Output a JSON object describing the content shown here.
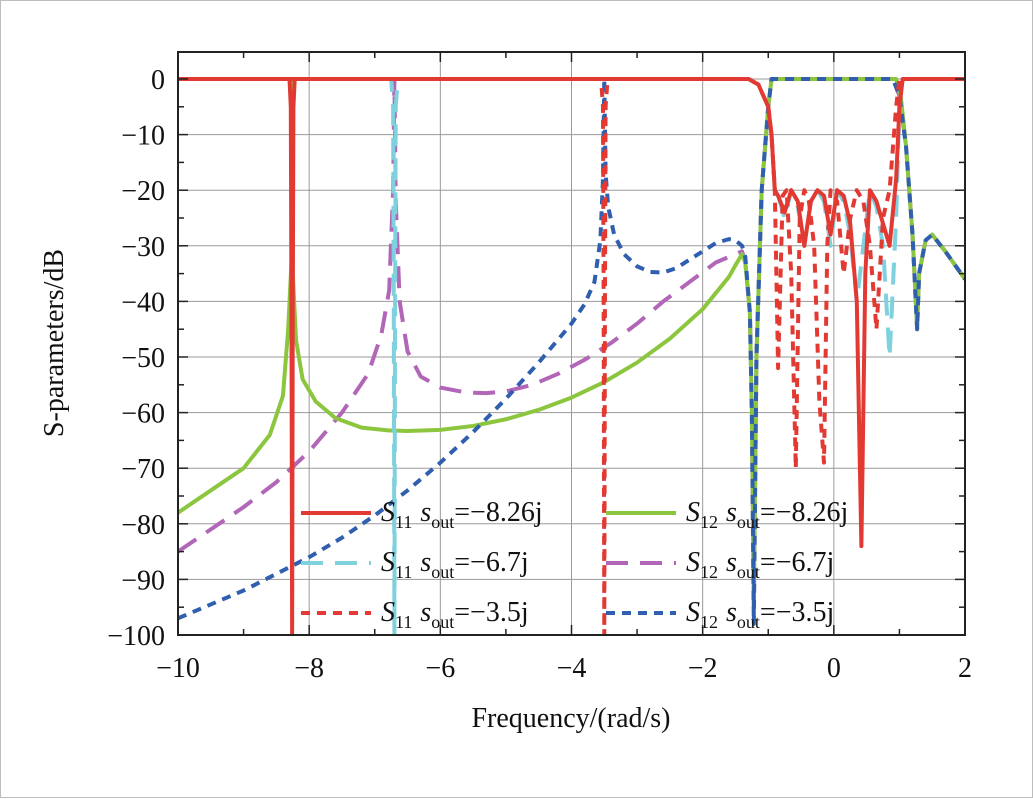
{
  "chart_data": {
    "type": "line",
    "xlabel": "Frequency/(rad/s)",
    "ylabel": "S-parameters/dB",
    "xlim": [
      -10,
      2
    ],
    "ylim": [
      -100,
      5
    ],
    "xticks": [
      -10,
      -8,
      -6,
      -4,
      -2,
      0,
      2
    ],
    "xtick_labels": [
      "−10",
      "−8",
      "−6",
      "−4",
      "−2",
      "0",
      "2"
    ],
    "yticks": [
      0,
      -10,
      -20,
      -30,
      -40,
      -50,
      -60,
      -70,
      -80,
      -90,
      -100
    ],
    "ytick_labels": [
      "0",
      "−10",
      "−20",
      "−30",
      "−40",
      "−50",
      "−60",
      "−70",
      "−80",
      "−90",
      "−100"
    ],
    "grid": true,
    "legend": {
      "placement": "bottom-center",
      "entries": [
        {
          "sym": "S",
          "sub": "11",
          "var": "s",
          "varsub": "out",
          "value": "=−8.26j"
        },
        {
          "sym": "S",
          "sub": "12",
          "var": "s",
          "varsub": "out",
          "value": "=−8.26j"
        },
        {
          "sym": "S",
          "sub": "11",
          "var": "s",
          "varsub": "out",
          "value": "=−6.7j"
        },
        {
          "sym": "S",
          "sub": "12",
          "var": "s",
          "varsub": "out",
          "value": "=−6.7j"
        },
        {
          "sym": "S",
          "sub": "11",
          "var": "s",
          "varsub": "out",
          "value": "=−3.5j"
        },
        {
          "sym": "S",
          "sub": "12",
          "var": "s",
          "varsub": "out",
          "value": "=−3.5j"
        }
      ]
    },
    "series": [
      {
        "name": "S11 sout=-8.26j",
        "color": "#e23a33",
        "dash": "solid",
        "x": [
          -10,
          -8.3,
          -8.28,
          -8.27,
          -8.26,
          -8.25,
          -8.24,
          -8.22,
          -6,
          -3,
          -2,
          -1.3,
          -1.15,
          -1.0,
          -0.95,
          -0.9,
          -0.85,
          -0.75,
          -0.65,
          -0.55,
          -0.45,
          -0.35,
          -0.25,
          -0.15,
          -0.05,
          0.05,
          0.15,
          0.25,
          0.35,
          0.42,
          0.48,
          0.55,
          0.65,
          0.75,
          0.85,
          0.95,
          1.0,
          1.05,
          1.1,
          1.2,
          1.3,
          2
        ],
        "y": [
          0,
          0,
          -5,
          -40,
          -100,
          -40,
          -5,
          0,
          0,
          0,
          0,
          0,
          -1,
          -5,
          -10,
          -20,
          -21,
          -24,
          -20,
          -22,
          -30,
          -22,
          -20,
          -21,
          -28,
          -20,
          -21,
          -26,
          -40,
          -84,
          -35,
          -20,
          -22,
          -26,
          -30,
          -18,
          -5,
          0,
          0,
          0,
          0,
          0
        ]
      },
      {
        "name": "S12 sout=-8.26j",
        "color": "#8cc63f",
        "dash": "solid",
        "x": [
          -10,
          -9.5,
          -9,
          -8.6,
          -8.4,
          -8.32,
          -8.27,
          -8.26,
          -8.25,
          -8.2,
          -8.1,
          -7.9,
          -7.6,
          -7.2,
          -6.8,
          -6.5,
          -6.0,
          -5.5,
          -5.0,
          -4.5,
          -4.0,
          -3.5,
          -3.0,
          -2.5,
          -2.0,
          -1.6,
          -1.5,
          -1.4,
          -1.35,
          -1.28,
          -1.25,
          -1.22,
          -1.18,
          -1.1,
          -1.0,
          -0.95,
          -0.9,
          -0.85,
          -0.75,
          -0.65,
          -0.55,
          -0.45,
          -0.35,
          -0.25,
          -0.15,
          -0.05,
          0.05,
          0.15,
          0.25,
          0.35,
          0.45,
          0.55,
          0.65,
          0.75,
          0.85,
          0.95,
          1.02,
          1.1,
          1.2,
          1.27,
          1.3,
          1.4,
          1.5,
          1.7,
          2.0
        ],
        "y": [
          -78,
          -74,
          -70,
          -64,
          -57,
          -45,
          -33,
          0,
          -35,
          -47,
          -54,
          -58,
          -61,
          -62.7,
          -63.2,
          -63.3,
          -63.1,
          -62.4,
          -61.2,
          -59.5,
          -57.3,
          -54.5,
          -51,
          -46.7,
          -41.4,
          -35.6,
          -33.5,
          -31.5,
          -33,
          -42,
          -60,
          -95,
          -50,
          -20,
          -5,
          0,
          0,
          0,
          0,
          0,
          0,
          0,
          0,
          0,
          0,
          0,
          0,
          0,
          0,
          0,
          0,
          0,
          0,
          0,
          0,
          0,
          -3,
          -12,
          -28,
          -45,
          -35,
          -29,
          -28,
          -31,
          -36
        ]
      },
      {
        "name": "S11 sout=-6.7j",
        "color": "#7fd1de",
        "dash": "longdash",
        "x": [
          -10,
          -6.75,
          -6.72,
          -6.71,
          -6.7,
          -6.69,
          -6.68,
          -6.65,
          -3,
          -1.3,
          -1.15,
          -1.0,
          -0.95,
          -0.9,
          -0.85,
          -0.75,
          -0.65,
          -0.55,
          -0.45,
          -0.35,
          -0.25,
          -0.15,
          -0.05,
          0.05,
          0.15,
          0.25,
          0.35,
          0.45,
          0.55,
          0.65,
          0.75,
          0.85,
          0.95,
          1.0,
          1.05,
          1.1,
          1.2,
          2
        ],
        "y": [
          0,
          0,
          -5,
          -40,
          -100,
          -40,
          -5,
          0,
          0,
          0,
          -1,
          -5,
          -10,
          -20,
          -21,
          -25,
          -20,
          -23,
          -30,
          -22,
          -20,
          -22,
          -30,
          -20,
          -22,
          -28,
          -40,
          -30,
          -20,
          -23,
          -30,
          -50,
          -25,
          -5,
          0,
          0,
          0,
          0
        ]
      },
      {
        "name": "S12 sout=-6.7j",
        "color": "#b266b8",
        "dash": "longdash",
        "x": [
          -10,
          -9.5,
          -9.0,
          -8.5,
          -8.0,
          -7.5,
          -7.1,
          -6.9,
          -6.78,
          -6.72,
          -6.7,
          -6.68,
          -6.62,
          -6.5,
          -6.3,
          -6.0,
          -5.6,
          -5.3,
          -5.0,
          -4.6,
          -4.2,
          -3.8,
          -3.4,
          -3.0,
          -2.6,
          -2.2,
          -1.8,
          -1.5,
          -1.4,
          -1.35,
          -1.28,
          -1.25,
          -1.22,
          -1.18,
          -1.1,
          -1.0,
          -0.95,
          -0.9,
          0,
          0.9,
          1.0,
          1.1,
          1.2,
          1.27,
          1.3,
          1.4,
          1.5,
          1.7,
          2.0
        ],
        "y": [
          -85,
          -81,
          -77,
          -72.5,
          -67,
          -60,
          -53,
          -46,
          -38,
          -20,
          0,
          -22,
          -40,
          -49,
          -53.5,
          -55.5,
          -56.4,
          -56.5,
          -56.2,
          -55,
          -53,
          -50.5,
          -47.5,
          -44,
          -40,
          -36.5,
          -33,
          -31.5,
          -31,
          -33,
          -42,
          -60,
          -95,
          -50,
          -20,
          -5,
          0,
          0,
          0,
          0,
          -3,
          -12,
          -28,
          -45,
          -35,
          -29,
          -28,
          -31,
          -36
        ]
      },
      {
        "name": "S11 sout=-3.5j",
        "color": "#e23a33",
        "dash": "shortdash",
        "x": [
          -10,
          -3.55,
          -3.52,
          -3.51,
          -3.5,
          -3.49,
          -3.48,
          -3.45,
          -1.3,
          -1.15,
          -1.0,
          -0.95,
          -0.9,
          -0.85,
          -0.78,
          -0.72,
          -0.65,
          -0.58,
          -0.52,
          -0.45,
          -0.38,
          -0.3,
          -0.22,
          -0.15,
          -0.1,
          -0.05,
          0.05,
          0.15,
          0.25,
          0.35,
          0.45,
          0.55,
          0.65,
          0.75,
          0.85,
          0.95,
          1.0,
          1.05,
          1.1,
          1.2,
          2
        ],
        "y": [
          0,
          0,
          -5,
          -40,
          -100,
          -40,
          -5,
          0,
          0,
          -1,
          -5,
          -10,
          -20,
          -52,
          -21,
          -20,
          -35,
          -70,
          -25,
          -20,
          -22,
          -30,
          -58,
          -69,
          -30,
          -20,
          -22,
          -35,
          -25,
          -20,
          -22,
          -30,
          -45,
          -25,
          -20,
          -5,
          0,
          0,
          0,
          0,
          0
        ]
      },
      {
        "name": "S12 sout=-3.5j",
        "color": "#2f5fae",
        "dash": "shortdash",
        "x": [
          -10,
          -9.5,
          -9.0,
          -8.5,
          -8.0,
          -7.5,
          -7.0,
          -6.5,
          -6.0,
          -5.5,
          -5.0,
          -4.5,
          -4.0,
          -3.8,
          -3.65,
          -3.56,
          -3.52,
          -3.5,
          -3.48,
          -3.44,
          -3.35,
          -3.2,
          -3.0,
          -2.8,
          -2.6,
          -2.4,
          -2.2,
          -2.0,
          -1.8,
          -1.6,
          -1.5,
          -1.4,
          -1.35,
          -1.28,
          -1.25,
          -1.22,
          -1.18,
          -1.1,
          -1.0,
          -0.95,
          -0.9,
          0,
          0.9,
          1.0,
          1.1,
          1.2,
          1.27,
          1.3,
          1.4,
          1.5,
          1.7,
          2.0
        ],
        "y": [
          -97,
          -94.5,
          -92,
          -89,
          -86,
          -82.5,
          -78.5,
          -74,
          -69,
          -63.5,
          -57.5,
          -51,
          -44,
          -40.5,
          -36.5,
          -29,
          -18,
          0,
          -17,
          -23,
          -28,
          -31.5,
          -33.7,
          -34.7,
          -34.8,
          -34,
          -32.5,
          -31,
          -29.5,
          -28.8,
          -29,
          -30,
          -32,
          -42,
          -60,
          -98,
          -50,
          -20,
          -5,
          0,
          0,
          0,
          0,
          -3,
          -12,
          -28,
          -45,
          -35,
          -29,
          -28,
          -31,
          -36
        ]
      }
    ]
  }
}
